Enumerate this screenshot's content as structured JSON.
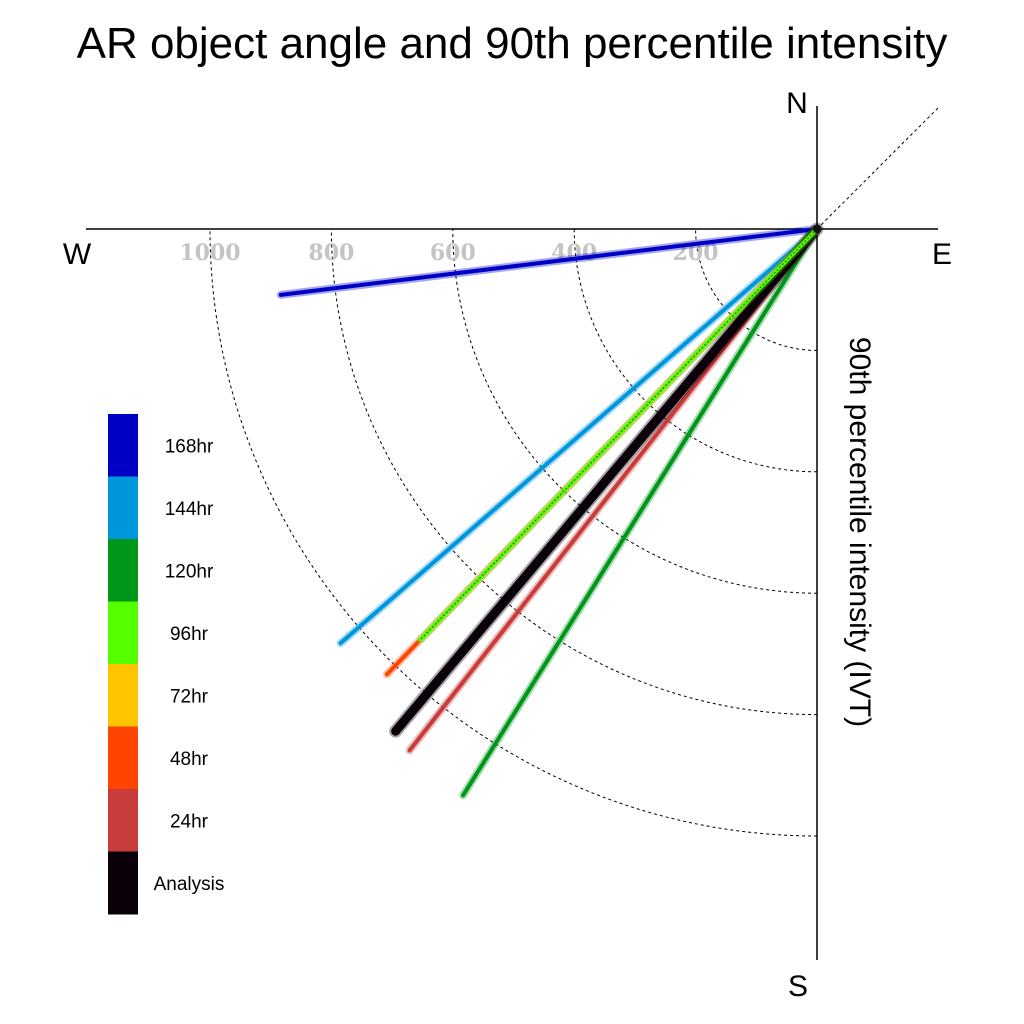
{
  "chart_data": {
    "type": "line",
    "title": "AR object angle and 90th percentile intensity",
    "ylabel": "90th percentile intensity (IVT)",
    "compass": {
      "north": "N",
      "south": "S",
      "west": "W",
      "east": "E"
    },
    "radial_ticks": [
      200,
      400,
      600,
      800,
      1000
    ],
    "tick_labels": [
      "200",
      "400",
      "600",
      "800",
      "1000"
    ],
    "radial_range": [
      0,
      1200
    ],
    "rings_shown": [
      200,
      400,
      600,
      800,
      1000
    ],
    "grid": true,
    "series": [
      {
        "name": "168hr",
        "color": "#0000c4",
        "angle_deg": 187,
        "intensity": 890
      },
      {
        "name": "144hr",
        "color": "#0096dc",
        "angle_deg": 221,
        "intensity": 1040
      },
      {
        "name": "120hr",
        "color": "#009619",
        "angle_deg": 238,
        "intensity": 1100
      },
      {
        "name": "96hr",
        "color": "#55ff00",
        "angle_deg": 226,
        "intensity": 940
      },
      {
        "name": "72hr",
        "color": "#ffc400",
        "angle_deg": 230,
        "intensity": 1010
      },
      {
        "name": "48hr",
        "color": "#ff4400",
        "angle_deg": 226,
        "intensity": 1020
      },
      {
        "name": "24hr",
        "color": "#c83c3c",
        "angle_deg": 232,
        "intensity": 1090
      },
      {
        "name": "Analysis",
        "color": "#0a0009",
        "angle_deg": 230,
        "intensity": 1080
      }
    ],
    "legend": {
      "position": "bottom-left",
      "entries": [
        {
          "label": "168hr",
          "color": "#0000c4"
        },
        {
          "label": "144hr",
          "color": "#0096dc"
        },
        {
          "label": "120hr",
          "color": "#009619"
        },
        {
          "label": "96hr",
          "color": "#55ff00"
        },
        {
          "label": "72hr",
          "color": "#ffc400"
        },
        {
          "label": "48hr",
          "color": "#ff4400"
        },
        {
          "label": "24hr",
          "color": "#c83c3c"
        },
        {
          "label": "Analysis",
          "color": "#0a0009"
        }
      ]
    }
  }
}
